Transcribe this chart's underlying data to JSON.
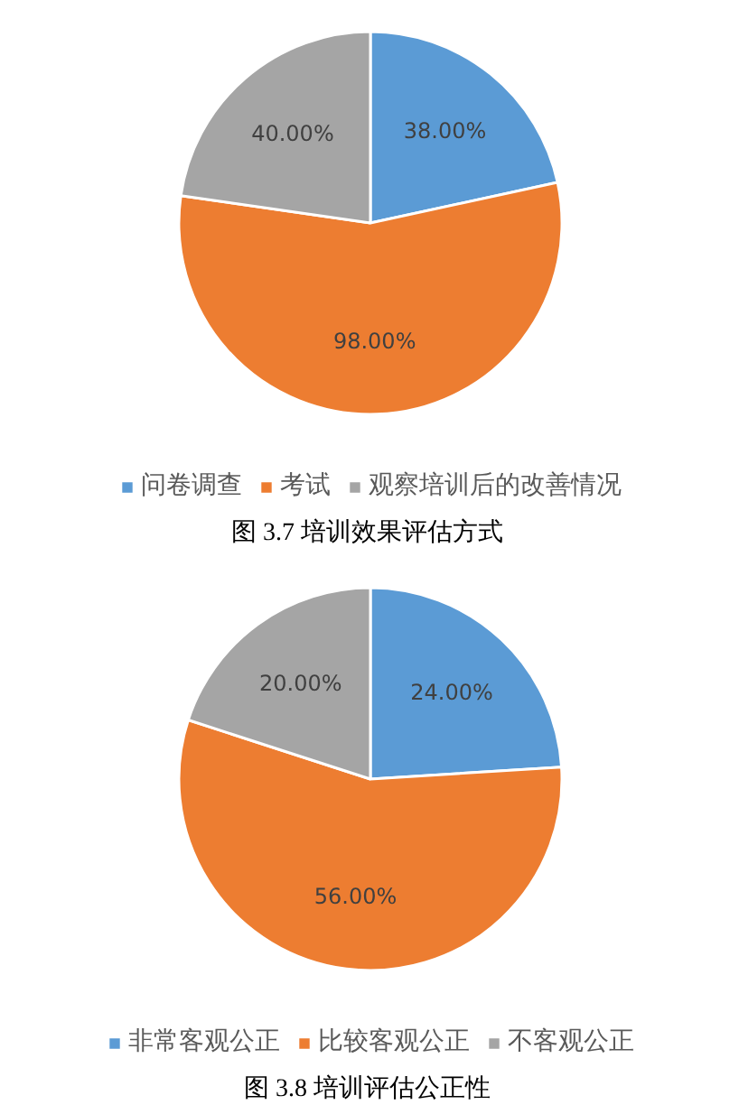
{
  "chart_data": [
    {
      "type": "pie",
      "title": "图 3.7  培训效果评估方式",
      "categories": [
        "问卷调查",
        "考试",
        "观察培训后的改善情况"
      ],
      "values": [
        38,
        98,
        40
      ],
      "colors": [
        "#5b9bd5",
        "#ed7d31",
        "#a5a5a5"
      ],
      "value_labels": [
        "38.00%",
        "98.00%",
        "40.00%"
      ],
      "legend": "bottom"
    },
    {
      "type": "pie",
      "title": "图 3.8  培训评估公正性",
      "categories": [
        "非常客观公正",
        "比较客观公正",
        "不客观公正"
      ],
      "values": [
        24,
        56,
        20
      ],
      "colors": [
        "#5b9bd5",
        "#ed7d31",
        "#a5a5a5"
      ],
      "value_labels": [
        "24.00%",
        "56.00%",
        "20.00%"
      ],
      "legend": "bottom"
    }
  ]
}
